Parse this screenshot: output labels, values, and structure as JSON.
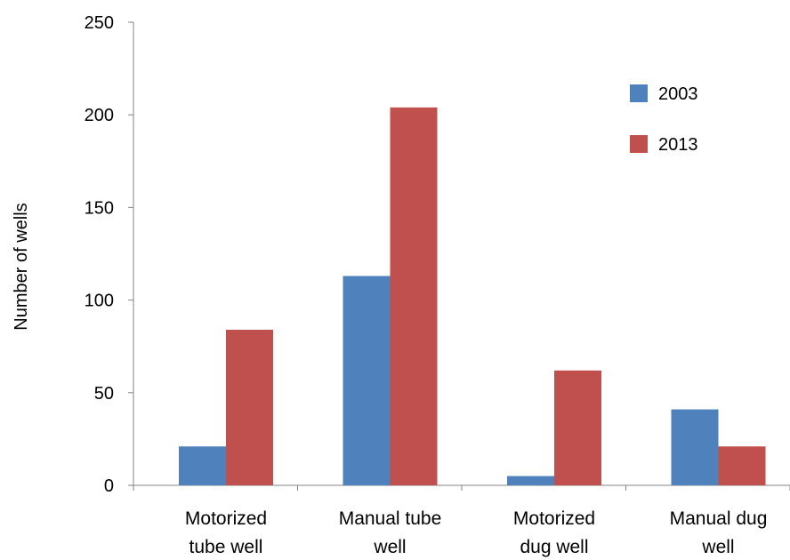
{
  "chart_data": {
    "type": "bar",
    "title": "",
    "xlabel": "",
    "ylabel": "Number of wells",
    "categories": [
      [
        "Motorized",
        "tube well"
      ],
      [
        "Manual tube",
        "well"
      ],
      [
        "Motorized",
        "dug well"
      ],
      [
        "Manual dug",
        "well"
      ]
    ],
    "series": [
      {
        "name": "2003",
        "color": "#4F81BD",
        "values": [
          21,
          113,
          5,
          41
        ]
      },
      {
        "name": "2013",
        "color": "#C0504D",
        "values": [
          84,
          204,
          62,
          21
        ]
      }
    ],
    "ylim": [
      0,
      250
    ],
    "yticks": [
      0,
      50,
      100,
      150,
      200,
      250
    ],
    "grid": false,
    "legend_position": "top-right"
  }
}
